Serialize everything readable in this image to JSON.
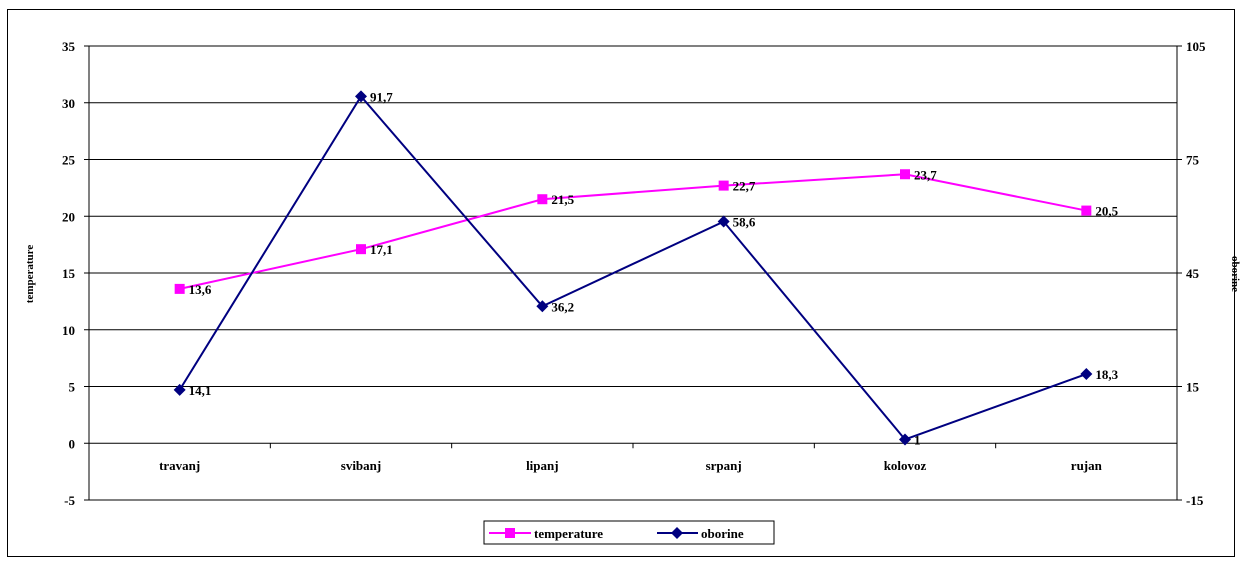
{
  "chart_data": {
    "type": "line",
    "categories": [
      "travanj",
      "svibanj",
      "lipanj",
      "srpanj",
      "kolovoz",
      "rujan"
    ],
    "ylabel": "temperature",
    "y2label": "oborine",
    "ylim": [
      -5,
      35
    ],
    "yticks": [
      -5,
      0,
      5,
      10,
      15,
      20,
      25,
      30,
      35
    ],
    "y2lim": [
      -15,
      105
    ],
    "y2ticks": [
      -15,
      15,
      45,
      75,
      105
    ],
    "grid": true,
    "legend": "bottom",
    "series": [
      {
        "name": "temperature",
        "axis": "left",
        "marker": "square",
        "color": "#FF00FF",
        "values": [
          13.6,
          17.1,
          21.5,
          22.7,
          23.7,
          20.5
        ],
        "labels": [
          "13,6",
          "17,1",
          "21,5",
          "22,7",
          "23,7",
          "20,5"
        ]
      },
      {
        "name": "oborine",
        "axis": "right",
        "marker": "diamond",
        "color": "#000080",
        "values": [
          14.1,
          91.7,
          36.2,
          58.6,
          1,
          18.3
        ],
        "labels": [
          "14,1",
          "91,7",
          "36,2",
          "58,6",
          "1",
          "18,3"
        ]
      }
    ]
  }
}
